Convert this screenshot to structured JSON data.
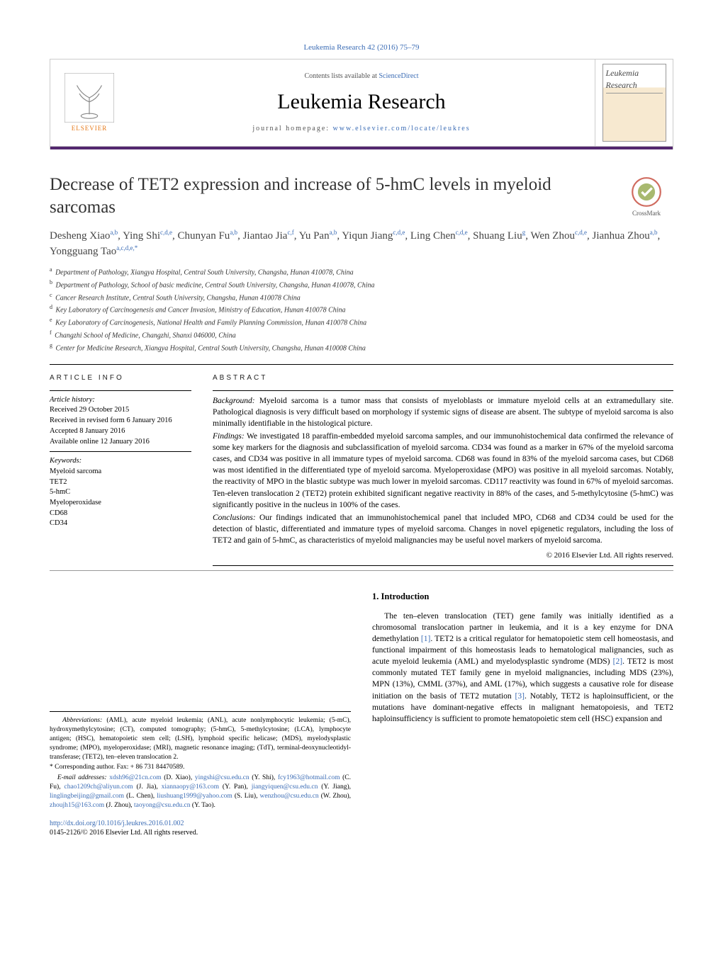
{
  "header_ref": "Leukemia Research 42 (2016) 75–79",
  "banner": {
    "contents_prefix": "Contents lists available at ",
    "contents_link": "ScienceDirect",
    "journal_name": "Leukemia Research",
    "homepage_prefix": "journal homepage: ",
    "homepage_link": "www.elsevier.com/locate/leukres",
    "publisher": "ELSEVIER",
    "cover_title": "Leukemia Research"
  },
  "crossmark_label": "CrossMark",
  "title": "Decrease of TET2 expression and increase of 5-hmC levels in myeloid sarcomas",
  "authors_html": "Desheng Xiao<sup>a,b</sup>, Ying Shi<sup>c,d,e</sup>, Chunyan Fu<sup>a,b</sup>, Jiantao Jia<sup>c,f</sup>, Yu Pan<sup>a,b</sup>, Yiqun Jiang<sup>c,d,e</sup>, Ling Chen<sup>c,d,e</sup>, Shuang Liu<sup>g</sup>, Wen Zhou<sup>c,d,e</sup>, Jianhua Zhou<sup>a,b</sup>, Yongguang Tao<sup>a,c,d,e,*</sup>",
  "affiliations": [
    "a|Department of Pathology, Xiangya Hospital, Central South University, Changsha, Hunan 410078, China",
    "b|Department of Pathology, School of basic medicine, Central South University, Changsha, Hunan 410078, China",
    "c|Cancer Research Institute, Central South University, Changsha, Hunan 410078 China",
    "d|Key Laboratory of Carcinogenesis and Cancer Invasion, Ministry of Education, Hunan 410078 China",
    "e|Key Laboratory of Carcinogenesis, National Health and Family Planning Commission, Hunan 410078 China",
    "f|Changzhi School of Medicine, Changzhi, Shanxi 046000, China",
    "g|Center for Medicine Research, Xiangya Hospital, Central South University, Changsha, Hunan 410008 China"
  ],
  "article_info": {
    "head": "ARTICLE INFO",
    "history_label": "Article history:",
    "history": [
      "Received 29 October 2015",
      "Received in revised form 6 January 2016",
      "Accepted 8 January 2016",
      "Available online 12 January 2016"
    ],
    "keywords_label": "Keywords:",
    "keywords": [
      "Myeloid sarcoma",
      "TET2",
      "5-hmC",
      "Myeloperoxidase",
      "CD68",
      "CD34"
    ]
  },
  "abstract": {
    "head": "ABSTRACT",
    "background_label": "Background:",
    "background": "Myeloid sarcoma is a tumor mass that consists of myeloblasts or immature myeloid cells at an extramedullary site. Pathological diagnosis is very difficult based on morphology if systemic signs of disease are absent. The subtype of myeloid sarcoma is also minimally identifiable in the histological picture.",
    "findings_label": "Findings:",
    "findings": "We investigated 18 paraffin-embedded myeloid sarcoma samples, and our immunohistochemical data confirmed the relevance of some key markers for the diagnosis and subclassification of myeloid sarcoma. CD34 was found as a marker in 67% of the myeloid sarcoma cases, and CD34 was positive in all immature types of myeloid sarcoma. CD68 was found in 83% of the myeloid sarcoma cases, but CD68 was most identified in the differentiated type of myeloid sarcoma. Myeloperoxidase (MPO) was positive in all myeloid sarcomas. Notably, the reactivity of MPO in the blastic subtype was much lower in myeloid sarcomas. CD117 reactivity was found in 67% of myeloid sarcomas. Ten-eleven translocation 2 (TET2) protein exhibited significant negative reactivity in 88% of the cases, and 5-methylcytosine (5-hmC) was significantly positive in the nucleus in 100% of the cases.",
    "conclusions_label": "Conclusions:",
    "conclusions": "Our findings indicated that an immunohistochemical panel that included MPO, CD68 and CD34 could be used for the detection of blastic, differentiated and immature types of myeloid sarcoma. Changes in novel epigenetic regulators, including the loss of TET2 and gain of 5-hmC, as characteristics of myeloid malignancies may be useful novel markers of myeloid sarcoma.",
    "copyright": "© 2016 Elsevier Ltd. All rights reserved."
  },
  "intro": {
    "heading": "1.  Introduction",
    "p1_a": "The ten–eleven translocation (TET) gene family was initially identified as a chromosomal translocation partner in leukemia, and it is a key enzyme for DNA demethylation ",
    "ref1": "[1]",
    "p1_b": ". TET2 is a critical regulator for hematopoietic stem cell homeostasis, and functional impairment of this homeostasis leads to hematological malignancies, such as acute myeloid leukemia (AML) and myelodysplastic syndrome (MDS) ",
    "ref2": "[2]",
    "p1_c": ". TET2 is most commonly mutated TET family gene in myeloid malignancies, including MDS (23%), MPN (13%), CMML (37%), and AML (17%), which suggests a causative role for disease initiation on the basis of TET2 mutation ",
    "ref3": "[3]",
    "p1_d": ". Notably, TET2 is haploinsufficient, or the mutations have dominant-negative effects in malignant hematopoiesis, and TET2 haploinsufficiency is sufficient to promote hematopoietic stem cell (HSC) expansion and"
  },
  "footnotes": {
    "abbrev_label": "Abbreviations:",
    "abbrev": "(AML), acute myeloid leukemia; (ANL), acute nonlymphocytic leukemia; (5-mC), hydroxymethylcytosine; (CT), computed tomography; (5-hmC), 5-methylcytosine; (LCA), lymphocyte antigen; (HSC), hematopoietic stem cell; (LSH), lymphoid specific helicase; (MDS), myelodysplastic syndrome; (MPO), myeloperoxidase; (MRI), magnetic resonance imaging; (TdT), terminal-deoxynucleotidyl-transferase; (TET2), ten–eleven translocation 2.",
    "corr_label": "* Corresponding author. Fax: + 86 731 84470589.",
    "email_label": "E-mail addresses:",
    "emails": "xdsh96@21cn.com (D. Xiao), yingshi@csu.edu.cn (Y. Shi), fcy1963@hotmail.com (C. Fu), chao1209ch@aliyun.com (J. Jia), xiannaopy@163.com (Y. Pan), jiangyiquen@csu.edu.cn (Y. Jiang), linglingbeijing@gmail.com (L. Chen), liushuang1999@yahoo.com (S. Liu), wenzhou@csu.edu.cn (W. Zhou), zhoujh15@163.com (J. Zhou), taoyong@csu.edu.cn (Y. Tao)."
  },
  "doi": {
    "url": "http://dx.doi.org/10.1016/j.leukres.2016.01.002",
    "line2": "0145-2126/© 2016 Elsevier Ltd. All rights reserved."
  },
  "colors": {
    "link": "#3b6cb5",
    "purple_bar": "#53276f",
    "elsevier_orange": "#e67817"
  }
}
